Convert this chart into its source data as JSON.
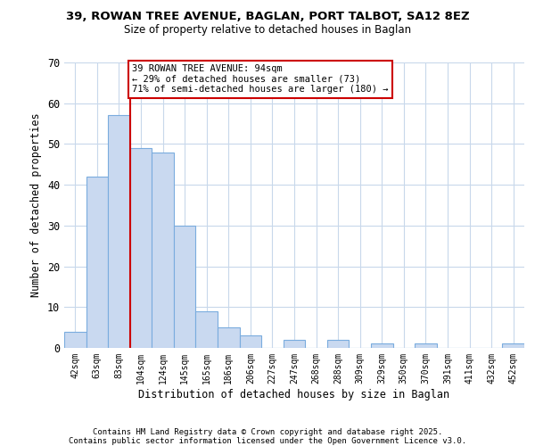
{
  "title": "39, ROWAN TREE AVENUE, BAGLAN, PORT TALBOT, SA12 8EZ",
  "subtitle": "Size of property relative to detached houses in Baglan",
  "xlabel": "Distribution of detached houses by size in Baglan",
  "ylabel": "Number of detached properties",
  "bar_labels": [
    "42sqm",
    "63sqm",
    "83sqm",
    "104sqm",
    "124sqm",
    "145sqm",
    "165sqm",
    "186sqm",
    "206sqm",
    "227sqm",
    "247sqm",
    "268sqm",
    "288sqm",
    "309sqm",
    "329sqm",
    "350sqm",
    "370sqm",
    "391sqm",
    "411sqm",
    "432sqm",
    "452sqm"
  ],
  "bar_values": [
    4,
    42,
    57,
    49,
    48,
    30,
    9,
    5,
    3,
    0,
    2,
    0,
    2,
    0,
    1,
    0,
    1,
    0,
    0,
    0,
    1
  ],
  "bar_color": "#c9d9f0",
  "bar_edge_color": "#7aacde",
  "vline_x": 2.5,
  "vline_color": "#cc0000",
  "annotation_title": "39 ROWAN TREE AVENUE: 94sqm",
  "annotation_line1": "← 29% of detached houses are smaller (73)",
  "annotation_line2": "71% of semi-detached houses are larger (180) →",
  "annotation_box_color": "#ffffff",
  "annotation_box_edge": "#cc0000",
  "ylim": [
    0,
    70
  ],
  "yticks": [
    0,
    10,
    20,
    30,
    40,
    50,
    60,
    70
  ],
  "footnote1": "Contains HM Land Registry data © Crown copyright and database right 2025.",
  "footnote2": "Contains public sector information licensed under the Open Government Licence v3.0.",
  "background_color": "#ffffff",
  "grid_color": "#c8d8eb"
}
